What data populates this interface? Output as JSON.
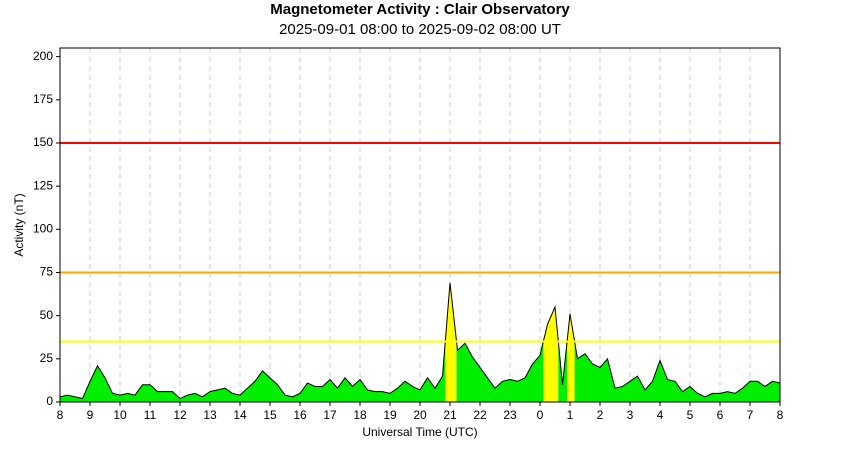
{
  "chart_data": {
    "type": "area",
    "title": "Magnetometer Activity : Clair Observatory",
    "subtitle": "2025-09-01 08:00 to 2025-09-02 08:00 UT",
    "x_label": "Universal Time (UTC)",
    "y_label": "Activity (nT)",
    "xlim": [
      0,
      24
    ],
    "ylim": [
      0,
      205
    ],
    "yticks": [
      0,
      25,
      50,
      75,
      100,
      125,
      150,
      175,
      200
    ],
    "xticks": [
      {
        "value": 0,
        "label": "8"
      },
      {
        "value": 1,
        "label": "9"
      },
      {
        "value": 2,
        "label": "10"
      },
      {
        "value": 3,
        "label": "11"
      },
      {
        "value": 4,
        "label": "12"
      },
      {
        "value": 5,
        "label": "13"
      },
      {
        "value": 6,
        "label": "14"
      },
      {
        "value": 7,
        "label": "15"
      },
      {
        "value": 8,
        "label": "16"
      },
      {
        "value": 9,
        "label": "17"
      },
      {
        "value": 10,
        "label": "18"
      },
      {
        "value": 11,
        "label": "19"
      },
      {
        "value": 12,
        "label": "20"
      },
      {
        "value": 13,
        "label": "21"
      },
      {
        "value": 14,
        "label": "22"
      },
      {
        "value": 15,
        "label": "23"
      },
      {
        "value": 16,
        "label": "0"
      },
      {
        "value": 17,
        "label": "1"
      },
      {
        "value": 18,
        "label": "2"
      },
      {
        "value": 19,
        "label": "3"
      },
      {
        "value": 20,
        "label": "4"
      },
      {
        "value": 21,
        "label": "5"
      },
      {
        "value": 22,
        "label": "6"
      },
      {
        "value": 23,
        "label": "7"
      },
      {
        "value": 24,
        "label": "8"
      }
    ],
    "grid": true,
    "levels": [
      {
        "value": 150,
        "color": "#ff0000"
      },
      {
        "value": 75,
        "color": "#ffa500"
      },
      {
        "value": 35,
        "color": "#ffff00"
      }
    ],
    "x": [
      0,
      0.25,
      0.5,
      0.75,
      1,
      1.25,
      1.5,
      1.75,
      2,
      2.25,
      2.5,
      2.75,
      3,
      3.25,
      3.5,
      3.75,
      4,
      4.25,
      4.5,
      4.75,
      5,
      5.25,
      5.5,
      5.75,
      6,
      6.25,
      6.5,
      6.75,
      7,
      7.25,
      7.5,
      7.75,
      8,
      8.25,
      8.5,
      8.75,
      9,
      9.25,
      9.5,
      9.75,
      10,
      10.25,
      10.5,
      10.75,
      11,
      11.25,
      11.5,
      11.75,
      12,
      12.25,
      12.5,
      12.75,
      13,
      13.25,
      13.5,
      13.75,
      14,
      14.25,
      14.5,
      14.75,
      15,
      15.25,
      15.5,
      15.75,
      16,
      16.25,
      16.5,
      16.75,
      17,
      17.25,
      17.5,
      17.75,
      18,
      18.25,
      18.5,
      18.75,
      19,
      19.25,
      19.5,
      19.75,
      20,
      20.25,
      20.5,
      20.75,
      21,
      21.25,
      21.5,
      21.75,
      22,
      22.25,
      22.5,
      22.75,
      23,
      23.25,
      23.5,
      23.75,
      24
    ],
    "series": [
      {
        "color": "#00ee00",
        "line_color": "#000000",
        "values": [
          3,
          4,
          3,
          2,
          12,
          21,
          14,
          5,
          4,
          5,
          4,
          10,
          10,
          6,
          6,
          6,
          2,
          4,
          5,
          3,
          6,
          7,
          8,
          5,
          4,
          8,
          12,
          18,
          14,
          10,
          4,
          3,
          5,
          11,
          9,
          9,
          13,
          8,
          14,
          9,
          13,
          7,
          6,
          6,
          5,
          8,
          12,
          9,
          7,
          14,
          8,
          15,
          69,
          30,
          34,
          26,
          20,
          14,
          8,
          12,
          13,
          12,
          14,
          22,
          27,
          45,
          55,
          10,
          51,
          25,
          28,
          22,
          20,
          25,
          8,
          9,
          12,
          15,
          7,
          12,
          24,
          13,
          12,
          6,
          9,
          5,
          3,
          5,
          5,
          6,
          5,
          8,
          12,
          12,
          9,
          12,
          11
        ]
      }
    ]
  }
}
